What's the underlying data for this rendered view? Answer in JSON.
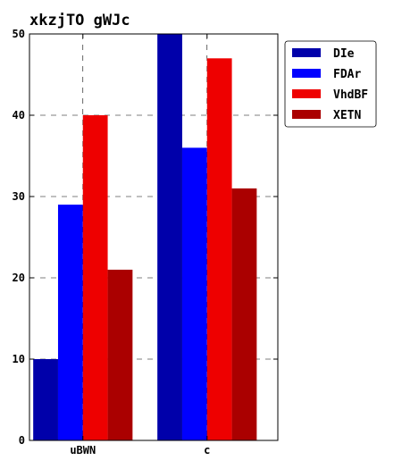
{
  "chart_data": {
    "type": "bar",
    "title": "xkzjTO  gWJc",
    "xlabel": "",
    "ylabel": "",
    "categories": [
      "uBWN",
      "c"
    ],
    "ylim": [
      0,
      50
    ],
    "yticks": [
      0,
      10,
      20,
      30,
      40,
      50
    ],
    "grid": true,
    "legend_position": "top-right",
    "series": [
      {
        "name": "DIe",
        "color": "#0000aa",
        "values": [
          10,
          50
        ]
      },
      {
        "name": "FDAr",
        "color": "#0000ff",
        "values": [
          29,
          36
        ]
      },
      {
        "name": "VhdBF",
        "color": "#ee0000",
        "values": [
          40,
          47
        ]
      },
      {
        "name": "XETN",
        "color": "#aa0000",
        "values": [
          21,
          31
        ]
      }
    ]
  }
}
